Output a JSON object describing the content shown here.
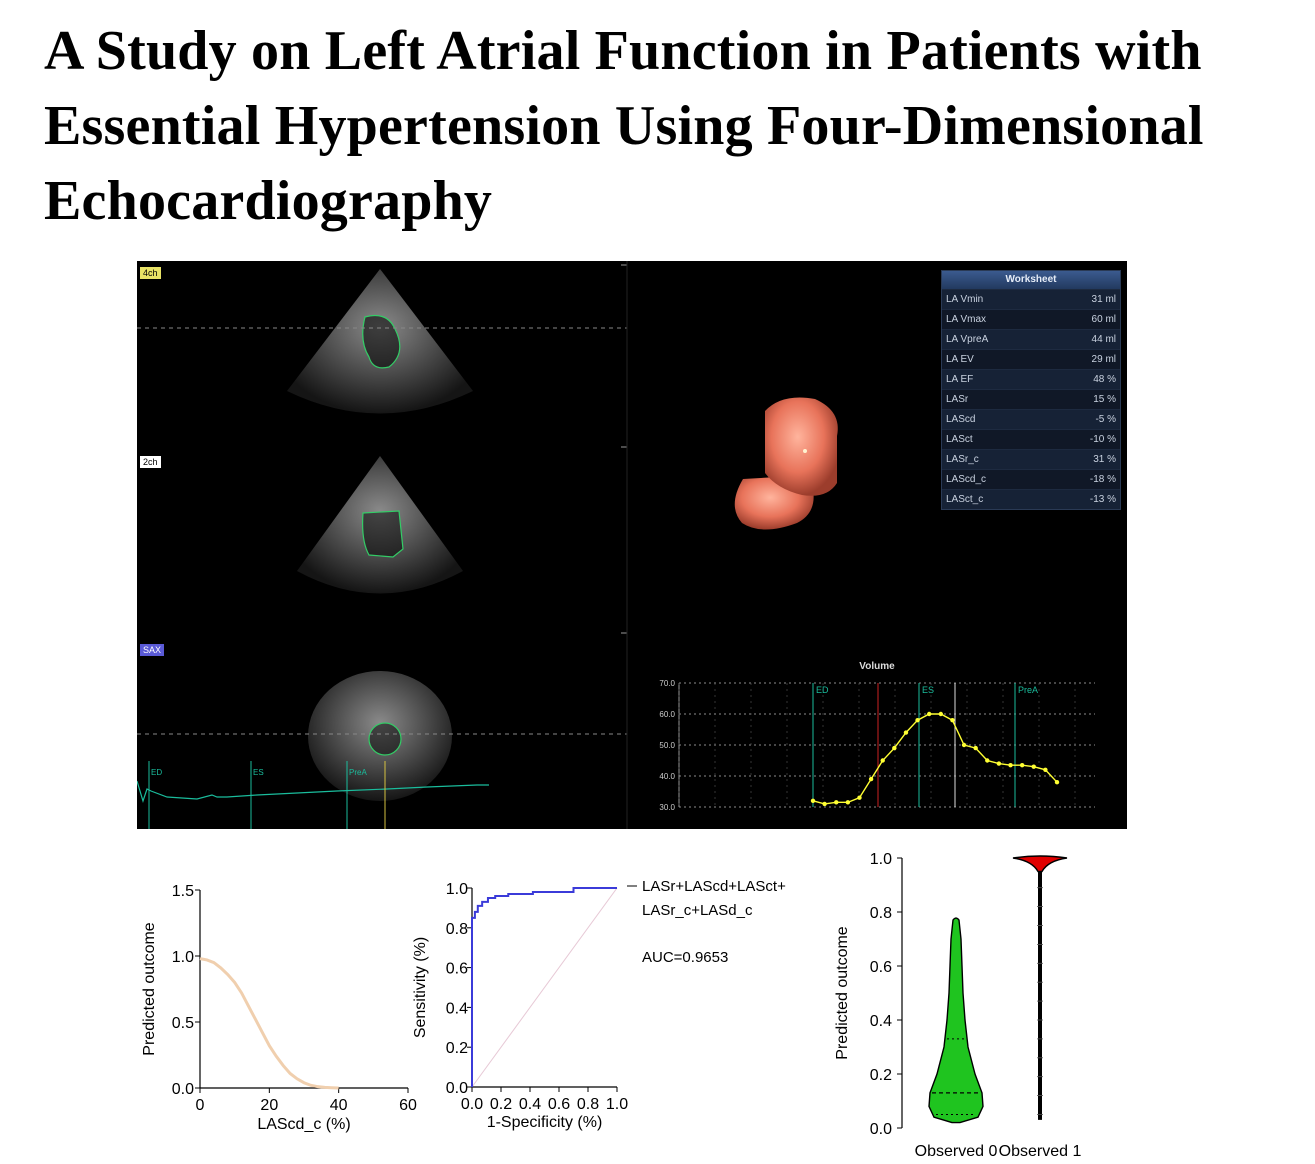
{
  "paper": {
    "title_lines": [
      "A Study on Left Atrial Function in Patients with",
      "Essential Hypertension Using Four-Dimensional",
      "Echocardiography"
    ]
  },
  "echo_panel": {
    "view_tags": {
      "four_chamber": "4ch",
      "two_chamber": "2ch",
      "short_axis": "SAX"
    },
    "ecg_markers": [
      "ED",
      "ES",
      "PreA"
    ],
    "worksheet": {
      "title": "Worksheet",
      "rows": [
        {
          "label": "LA Vmin",
          "value": "31 ml"
        },
        {
          "label": "LA Vmax",
          "value": "60 ml"
        },
        {
          "label": "LA VpreA",
          "value": "44 ml"
        },
        {
          "label": "LA EV",
          "value": "29 ml"
        },
        {
          "label": "LA EF",
          "value": "48 %"
        },
        {
          "label": "LASr",
          "value": "15 %"
        },
        {
          "label": "LAScd",
          "value": "-5 %"
        },
        {
          "label": "LASct",
          "value": "-10 %"
        },
        {
          "label": "LASr_c",
          "value": "31 %"
        },
        {
          "label": "LAScd_c",
          "value": "-18 %"
        },
        {
          "label": "LASct_c",
          "value": "-13 %"
        }
      ]
    },
    "colors": {
      "background": "#000000",
      "volume_render": "#e8735a",
      "trace": "#ffff33",
      "contour": "#33cc66"
    }
  },
  "chart_data": [
    {
      "type": "line",
      "title": "Volume",
      "xlabel": "",
      "ylabel": "",
      "ylim": [
        30,
        70
      ],
      "yticks": [
        "70.0",
        "60.0",
        "50.0",
        "40.0",
        "30.0"
      ],
      "markers": [
        "ED",
        "ES",
        "PreA"
      ],
      "x": [
        0,
        1,
        2,
        3,
        4,
        5,
        6,
        7,
        8,
        9,
        10,
        11,
        12,
        13,
        14,
        15,
        16,
        17,
        18,
        19,
        20,
        21
      ],
      "series": [
        {
          "values": [
            32,
            31,
            31.5,
            31.5,
            33,
            39,
            45,
            49,
            54,
            58,
            60,
            60,
            58,
            50,
            49,
            45,
            44,
            43.5,
            43.5,
            43,
            42,
            38
          ],
          "color": "#ffff33"
        }
      ]
    },
    {
      "type": "line",
      "title": "",
      "xlabel": "LAScd_c (%)",
      "ylabel": "Predicted outcome",
      "xlim": [
        0,
        60
      ],
      "ylim": [
        0,
        1.5
      ],
      "xticks": [
        "0",
        "20",
        "40",
        "60"
      ],
      "yticks": [
        "0.0",
        "0.5",
        "1.0",
        "1.5"
      ],
      "x": [
        0,
        2,
        4,
        6,
        8,
        10,
        12,
        14,
        16,
        18,
        20,
        22,
        24,
        26,
        28,
        30,
        32,
        34,
        36,
        38,
        40
      ],
      "series": [
        {
          "values": [
            0.98,
            0.97,
            0.95,
            0.91,
            0.86,
            0.8,
            0.72,
            0.62,
            0.52,
            0.42,
            0.32,
            0.24,
            0.17,
            0.11,
            0.07,
            0.04,
            0.02,
            0.01,
            0.005,
            0.002,
            0.0
          ],
          "color": "#f0cfae"
        }
      ]
    },
    {
      "type": "line",
      "title": "",
      "xlabel": "1-Specificity (%)",
      "ylabel": "Sensitivity (%)",
      "xlim": [
        0,
        1
      ],
      "ylim": [
        0,
        1
      ],
      "xticks": [
        "0.0",
        "0.2",
        "0.4",
        "0.6",
        "0.8",
        "1.0"
      ],
      "yticks": [
        "0.0",
        "0.2",
        "0.4",
        "0.6",
        "0.8",
        "1.0"
      ],
      "legend": {
        "line1": "LASr+LAScd+LASct+",
        "line2": "LASr_c+LASd_c",
        "auc": "AUC=0.9653"
      },
      "series": [
        {
          "name": "LASr+LAScd+LASct+LASr_c+LASd_c",
          "color": "#3b3bd9",
          "x": [
            0,
            0,
            0.02,
            0.02,
            0.04,
            0.04,
            0.07,
            0.07,
            0.11,
            0.11,
            0.16,
            0.16,
            0.25,
            0.25,
            0.42,
            0.42,
            0.7,
            0.7,
            1.0
          ],
          "y": [
            0,
            0.85,
            0.85,
            0.88,
            0.88,
            0.91,
            0.91,
            0.93,
            0.93,
            0.95,
            0.95,
            0.96,
            0.96,
            0.97,
            0.97,
            0.98,
            0.98,
            1.0,
            1.0
          ]
        },
        {
          "x": [
            0,
            1
          ],
          "y": [
            0,
            1
          ],
          "color": "#e7c9d6"
        }
      ]
    },
    {
      "type": "violin",
      "title": "",
      "xlabel": "",
      "ylabel": "Predicted outcome",
      "ylim": [
        0,
        1
      ],
      "yticks": [
        "0.0",
        "0.2",
        "0.4",
        "0.6",
        "0.8",
        "1.0"
      ],
      "categories": [
        "Observed 0",
        "Observed 1"
      ],
      "series": [
        {
          "name": "Observed 0",
          "color": "#1fc41f",
          "min": 0.02,
          "max": 0.77,
          "median": 0.13,
          "q1": 0.05,
          "q3": 0.33
        },
        {
          "name": "Observed 1",
          "color": "#e00000",
          "min": 0.03,
          "max": 1.0,
          "median": 0.99,
          "q1": 0.97,
          "q3": 1.0
        }
      ]
    }
  ]
}
